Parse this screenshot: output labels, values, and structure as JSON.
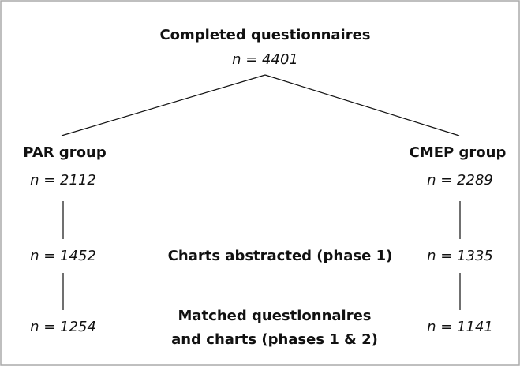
{
  "root": {
    "label": "Completed questionnaires",
    "count": "n = 4401"
  },
  "groups": [
    {
      "label": "PAR group",
      "count": "n = 2112",
      "phase1": "n = 1452",
      "phase2": "n = 1254"
    },
    {
      "label": "CMEP group",
      "count": "n = 2289",
      "phase1": "n = 1335",
      "phase2": "n = 1141"
    }
  ],
  "stages": {
    "phase1": "Charts abstracted (phase 1)",
    "phase2": [
      "Matched questionnaires",
      "and charts (phases 1 & 2)"
    ]
  }
}
